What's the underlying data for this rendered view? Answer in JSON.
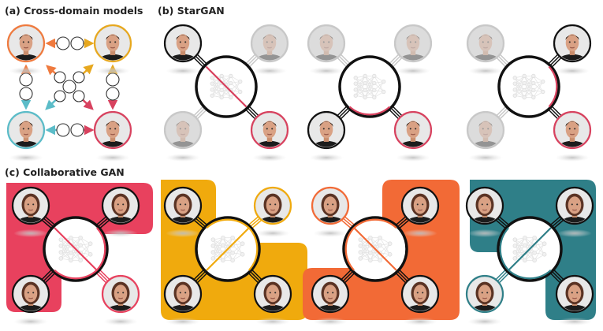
{
  "panels": {
    "a": {
      "label": "(a) Cross-domain models"
    },
    "b": {
      "label": "(b) StarGAN"
    },
    "c": {
      "label": "(c) Collaborative GAN"
    }
  },
  "colors": {
    "neutral": "#e8a85a",
    "happy": "#e7a81f",
    "surprised": "#5bbcc8",
    "sad": "#d8425f",
    "stargan_red": "#d8425f",
    "collab": [
      "#e8415e",
      "#f0aa0d",
      "#f26a36",
      "#2f7f88"
    ],
    "faded": "#c4c4c4",
    "dark": "#111111"
  },
  "icons": [
    "face-avatar-icon",
    "neural-network-icon"
  ]
}
